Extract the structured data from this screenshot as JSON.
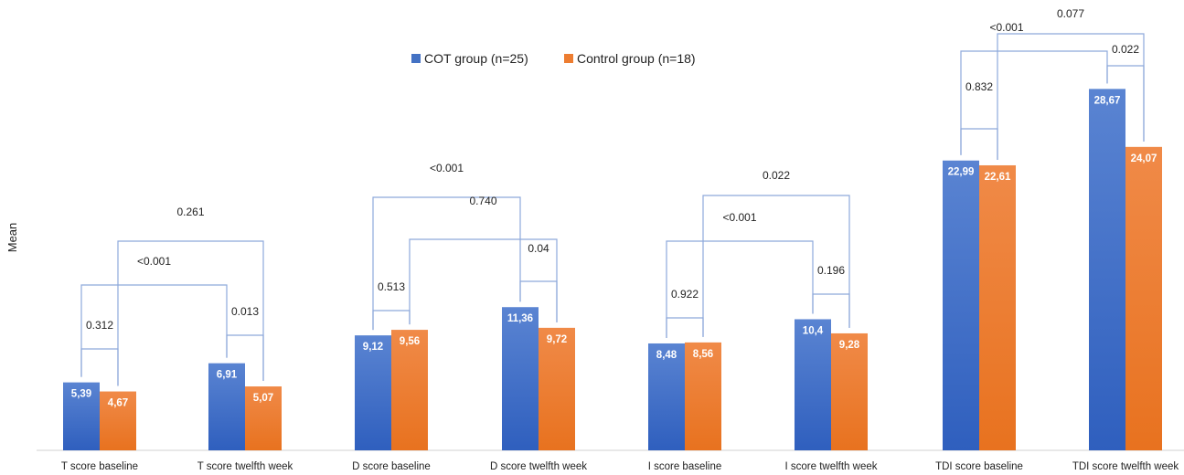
{
  "chart_data": {
    "type": "bar",
    "title": "",
    "xlabel": "",
    "ylabel": "Mean",
    "ylim": [
      0,
      30
    ],
    "grid": false,
    "legend_position": "top-center",
    "categories": [
      "T score baseline",
      "T score twelfth week",
      "D score baseline",
      "D score twelfth week",
      "I score baseline",
      "I score twelfth week",
      "TDI score baseline",
      "TDI score twelfth week"
    ],
    "series": [
      {
        "name": "COT group (n=25)",
        "color": "#4472c4",
        "values": [
          5.39,
          6.91,
          9.12,
          11.36,
          8.48,
          10.4,
          22.99,
          28.67
        ],
        "labels": [
          "5,39",
          "6,91",
          "9,12",
          "11,36",
          "8,48",
          "10,4",
          "22,99",
          "28,67"
        ]
      },
      {
        "name": "Control group (n=18)",
        "color": "#ed7d31",
        "values": [
          4.67,
          5.07,
          9.56,
          9.72,
          8.56,
          9.28,
          22.61,
          24.07
        ],
        "labels": [
          "4,67",
          "5,07",
          "9,56",
          "9,72",
          "8,56",
          "9,28",
          "22,61",
          "24,07"
        ]
      }
    ],
    "annotations": [
      {
        "text": "0.312",
        "kind": "pair",
        "from": [
          0,
          0
        ],
        "to": [
          0,
          1
        ]
      },
      {
        "text": "0.013",
        "kind": "pair",
        "from": [
          1,
          0
        ],
        "to": [
          1,
          1
        ]
      },
      {
        "text": "<0.001",
        "kind": "group",
        "from": [
          0,
          0
        ],
        "to": [
          1,
          0
        ]
      },
      {
        "text": "0.261",
        "kind": "group",
        "from": [
          0,
          1
        ],
        "to": [
          1,
          1
        ]
      },
      {
        "text": "0.513",
        "kind": "pair",
        "from": [
          2,
          0
        ],
        "to": [
          2,
          1
        ]
      },
      {
        "text": "0.04",
        "kind": "pair",
        "from": [
          3,
          0
        ],
        "to": [
          3,
          1
        ]
      },
      {
        "text": "<0.001",
        "kind": "group",
        "from": [
          2,
          0
        ],
        "to": [
          3,
          0
        ]
      },
      {
        "text": "0.740",
        "kind": "group",
        "from": [
          2,
          1
        ],
        "to": [
          3,
          1
        ]
      },
      {
        "text": "0.922",
        "kind": "pair",
        "from": [
          4,
          0
        ],
        "to": [
          4,
          1
        ]
      },
      {
        "text": "0.196",
        "kind": "pair",
        "from": [
          5,
          0
        ],
        "to": [
          5,
          1
        ]
      },
      {
        "text": "<0.001",
        "kind": "group",
        "from": [
          4,
          0
        ],
        "to": [
          5,
          0
        ]
      },
      {
        "text": "0.022",
        "kind": "group",
        "from": [
          4,
          1
        ],
        "to": [
          5,
          1
        ]
      },
      {
        "text": "0.832",
        "kind": "pair",
        "from": [
          6,
          0
        ],
        "to": [
          6,
          1
        ]
      },
      {
        "text": "0.022",
        "kind": "pair",
        "from": [
          7,
          0
        ],
        "to": [
          7,
          1
        ]
      },
      {
        "text": "<0.001",
        "kind": "group",
        "from": [
          6,
          0
        ],
        "to": [
          7,
          0
        ]
      },
      {
        "text": "0.077",
        "kind": "group",
        "from": [
          6,
          1
        ],
        "to": [
          7,
          1
        ]
      }
    ]
  }
}
